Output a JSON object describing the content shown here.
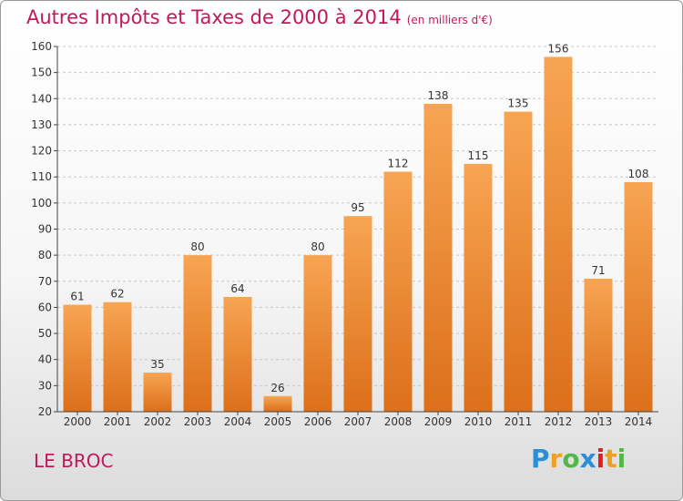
{
  "title": "Autres Impôts et Taxes de 2000 à 2014",
  "subtitle": "(en milliers d'€)",
  "commune": "LE BROC",
  "logo": {
    "letters": [
      "P",
      "r",
      "o",
      "x",
      "i",
      "t",
      "i"
    ],
    "colors": [
      "#2a8fd6",
      "#f0a020",
      "#52b848",
      "#2a8fd6",
      "#e02020",
      "#f0a020",
      "#52b848"
    ]
  },
  "colors": {
    "bar_top": "#f7a552",
    "bar_bottom": "#dc6f1a",
    "title": "#c2185b"
  },
  "chart_data": {
    "type": "bar",
    "title": "Autres Impôts et Taxes de 2000 à 2014",
    "subtitle": "(en milliers d'€)",
    "categories": [
      "2000",
      "2001",
      "2002",
      "2003",
      "2004",
      "2005",
      "2006",
      "2007",
      "2008",
      "2009",
      "2010",
      "2011",
      "2012",
      "2013",
      "2014"
    ],
    "values": [
      61,
      62,
      35,
      80,
      64,
      26,
      80,
      95,
      112,
      138,
      115,
      135,
      156,
      71,
      108
    ],
    "ylim": [
      20,
      160
    ],
    "yticks": [
      20,
      30,
      40,
      50,
      60,
      70,
      80,
      90,
      100,
      110,
      120,
      130,
      140,
      150,
      160
    ],
    "grid": true,
    "xlabel": "",
    "ylabel": ""
  }
}
